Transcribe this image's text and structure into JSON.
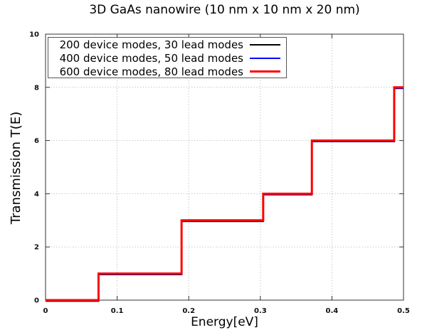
{
  "chart_data": {
    "type": "line",
    "line_style": "step",
    "title": "3D GaAs nanowire (10 nm x 10 nm x 20 nm)",
    "xlabel": "Energy[eV]",
    "ylabel": "Transmission T(E)",
    "xlim": [
      0,
      0.5
    ],
    "ylim": [
      0,
      10
    ],
    "xticks": [
      0,
      0.1,
      0.2,
      0.3,
      0.4,
      0.5
    ],
    "yticks": [
      0,
      2,
      4,
      6,
      8,
      10
    ],
    "grid": true,
    "grid_style": "dotted",
    "legend_position": "top-left",
    "colors": {
      "grid": "#bcbcbc",
      "border": "#333333",
      "tick_label": "#111111"
    },
    "series": [
      {
        "name": "200 device modes, 30 lead modes",
        "color": "#000000",
        "line_width": 2,
        "steps": [
          {
            "x": 0,
            "y": 0
          },
          {
            "x": 0.074,
            "y": 1
          },
          {
            "x": 0.19,
            "y": 3
          },
          {
            "x": 0.304,
            "y": 4
          },
          {
            "x": 0.372,
            "y": 6
          },
          {
            "x": 0.487,
            "y": 8
          }
        ]
      },
      {
        "name": "400 device modes, 50 lead modes",
        "color": "#0000ff",
        "line_width": 2,
        "steps": [
          {
            "x": 0,
            "y": 0
          },
          {
            "x": 0.074,
            "y": 1
          },
          {
            "x": 0.19,
            "y": 3
          },
          {
            "x": 0.304,
            "y": 4
          },
          {
            "x": 0.372,
            "y": 6
          },
          {
            "x": 0.487,
            "y": 8
          }
        ]
      },
      {
        "name": "600 device modes, 80 lead modes",
        "color": "#ff0000",
        "line_width": 3,
        "steps": [
          {
            "x": 0,
            "y": 0
          },
          {
            "x": 0.074,
            "y": 1
          },
          {
            "x": 0.19,
            "y": 3
          },
          {
            "x": 0.304,
            "y": 4
          },
          {
            "x": 0.372,
            "y": 6
          },
          {
            "x": 0.487,
            "y": 8
          }
        ]
      }
    ]
  }
}
